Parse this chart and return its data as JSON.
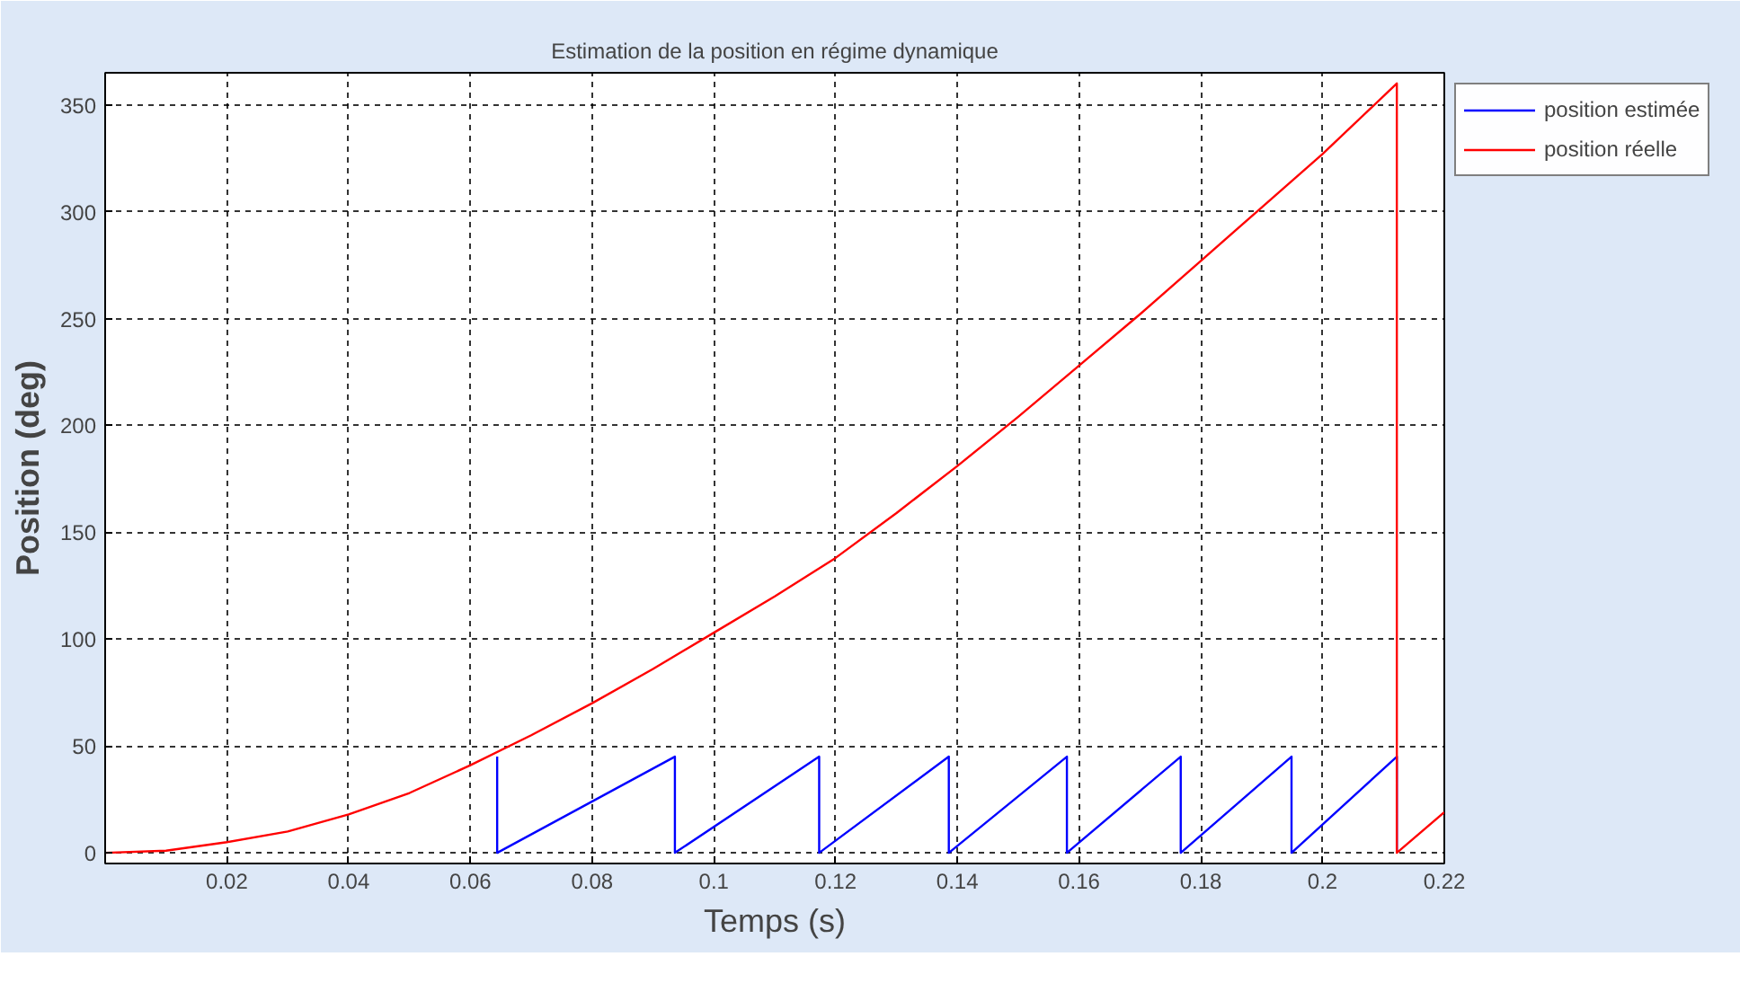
{
  "chart_data": {
    "type": "line",
    "title": "Estimation de la position en régime dynamique",
    "xlabel": "Temps (s)",
    "ylabel": "Position (deg)",
    "xlim": [
      0,
      0.22
    ],
    "ylim": [
      -5,
      365
    ],
    "xticks": [
      0.02,
      0.04,
      0.06,
      0.08,
      0.1,
      0.12,
      0.14,
      0.16,
      0.18,
      0.2,
      0.22
    ],
    "yticks": [
      0,
      50,
      100,
      150,
      200,
      250,
      300,
      350
    ],
    "grid": true,
    "legend": "top right",
    "line_style": "solid",
    "series": [
      {
        "name": "position estimée",
        "color": "#0000ff",
        "x": [
          0.0644,
          0.0644,
          0.0936,
          0.0936,
          0.1173,
          0.1173,
          0.1386,
          0.1386,
          0.158,
          0.158,
          0.1767,
          0.1767,
          0.1949,
          0.1949,
          0.2122,
          0.2122
        ],
        "values": [
          45,
          0,
          45,
          0,
          45,
          0,
          45,
          0,
          45,
          0,
          45,
          0,
          45,
          0,
          45,
          0
        ]
      },
      {
        "name": "position réelle",
        "color": "#ff0000",
        "x": [
          0,
          0.01,
          0.02,
          0.03,
          0.04,
          0.05,
          0.06,
          0.07,
          0.08,
          0.09,
          0.1,
          0.11,
          0.12,
          0.13,
          0.14,
          0.15,
          0.16,
          0.17,
          0.18,
          0.19,
          0.2,
          0.2122,
          0.2122,
          0.22
        ],
        "values": [
          0,
          1,
          5,
          10,
          18,
          28,
          41,
          55,
          70,
          86,
          103,
          120,
          138,
          159,
          181,
          204,
          228,
          252,
          277,
          302,
          327,
          360,
          0,
          19
        ]
      }
    ]
  }
}
